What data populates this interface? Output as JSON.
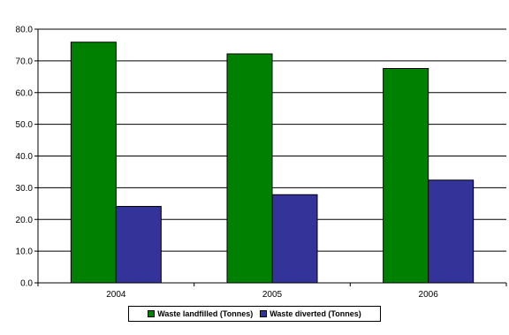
{
  "chart_data": {
    "type": "bar",
    "categories": [
      "2004",
      "2005",
      "2006"
    ],
    "series": [
      {
        "name": "Waste landfilled (Tonnes)",
        "color": "#008000",
        "values": [
          75.9,
          72.2,
          67.6
        ]
      },
      {
        "name": "Waste diverted (Tonnes)",
        "color": "#333399",
        "values": [
          24.1,
          27.8,
          32.4
        ]
      }
    ],
    "ylim": [
      0,
      80
    ],
    "yticks": [
      "0.0",
      "10.0",
      "20.0",
      "30.0",
      "40.0",
      "50.0",
      "60.0",
      "70.0",
      "80.0"
    ],
    "grid": "horizontal",
    "legend_position": "bottom"
  }
}
